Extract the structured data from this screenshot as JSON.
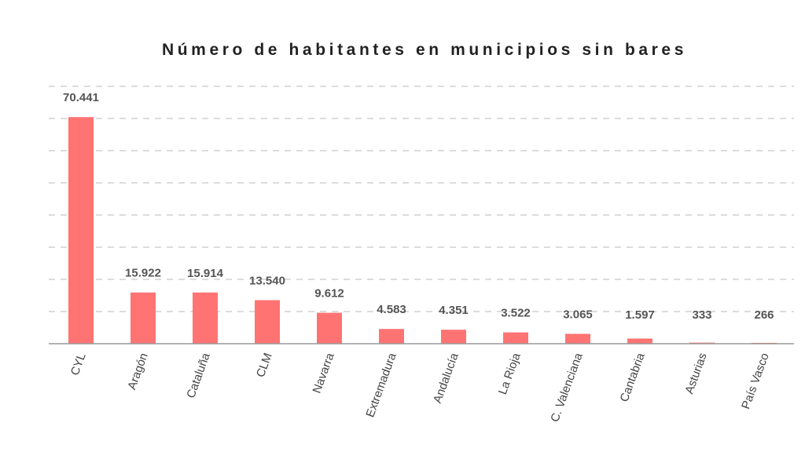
{
  "chart_data": {
    "type": "bar",
    "title": "Número de habitantes en municipios sin bares",
    "categories": [
      "CYL",
      "Aragón",
      "Cataluña",
      "CLM",
      "Navarra",
      "Extremadura",
      "Andalucía",
      "La Rioja",
      "C. Valenciana",
      "Cantabria",
      "Asturias",
      "País Vasco"
    ],
    "values": [
      70441,
      15922,
      15914,
      13540,
      9612,
      4583,
      4351,
      3522,
      3065,
      1597,
      333,
      266
    ],
    "data_labels": [
      "70.441",
      "15.922",
      "15.914",
      "13.540",
      "9.612",
      "4.583",
      "4.351",
      "3.522",
      "3.065",
      "1.597",
      "333",
      "266"
    ],
    "xlabel": "",
    "ylabel": "",
    "ylim": [
      0,
      80000
    ],
    "grid": true,
    "bar_color": "#ff7373"
  }
}
